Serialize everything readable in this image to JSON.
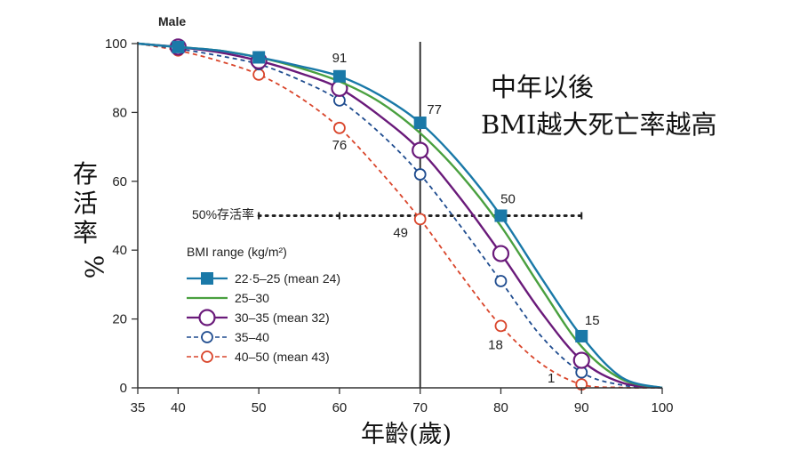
{
  "chart_data": {
    "type": "line",
    "panel_title": "Male",
    "title_lines": [
      "中年以後",
      "BMI越大死亡率越高"
    ],
    "ylabel": "存活率%",
    "xlabel": "年齡(歲)",
    "xlim": [
      35,
      100
    ],
    "ylim": [
      0,
      100
    ],
    "x_ticks": [
      35,
      40,
      50,
      60,
      70,
      80,
      90,
      100
    ],
    "y_ticks": [
      0,
      20,
      40,
      60,
      80,
      100
    ],
    "x_age_marker": 70,
    "reference_line": {
      "label": "50%存活率",
      "y": 50,
      "x_range": [
        50,
        90
      ]
    },
    "legend_title": "BMI range (kg/m²)",
    "legend_position": "lower-left",
    "series": [
      {
        "name": "22·5–25 (mean 24)",
        "color": "#1a79a8",
        "style": "solid",
        "marker": "square",
        "curve": [
          [
            35,
            100
          ],
          [
            40,
            99
          ],
          [
            45,
            98
          ],
          [
            50,
            96
          ],
          [
            55,
            93.5
          ],
          [
            60,
            90.5
          ],
          [
            65,
            85
          ],
          [
            70,
            77
          ],
          [
            75,
            65
          ],
          [
            80,
            50
          ],
          [
            85,
            32
          ],
          [
            90,
            15
          ],
          [
            95,
            3
          ],
          [
            100,
            0
          ]
        ],
        "markers": [
          [
            40,
            99
          ],
          [
            50,
            96
          ],
          [
            60,
            90.5
          ],
          [
            70,
            77
          ],
          [
            80,
            50
          ],
          [
            90,
            15
          ]
        ]
      },
      {
        "name": "25–30",
        "color": "#4aa03f",
        "style": "solid",
        "marker": "none",
        "curve": [
          [
            35,
            100
          ],
          [
            40,
            99
          ],
          [
            45,
            98
          ],
          [
            50,
            96
          ],
          [
            55,
            93
          ],
          [
            60,
            89
          ],
          [
            65,
            83
          ],
          [
            70,
            74
          ],
          [
            75,
            62
          ],
          [
            80,
            47
          ],
          [
            85,
            29
          ],
          [
            90,
            12
          ],
          [
            95,
            2.5
          ],
          [
            100,
            0
          ]
        ],
        "markers": []
      },
      {
        "name": "30–35 (mean 32)",
        "color": "#6a1a7a",
        "style": "solid",
        "marker": "circle-large",
        "curve": [
          [
            35,
            100
          ],
          [
            40,
            99
          ],
          [
            45,
            97.5
          ],
          [
            50,
            95
          ],
          [
            55,
            91.5
          ],
          [
            60,
            87
          ],
          [
            65,
            79
          ],
          [
            70,
            69
          ],
          [
            75,
            55
          ],
          [
            80,
            39
          ],
          [
            85,
            22
          ],
          [
            90,
            8
          ],
          [
            95,
            1.5
          ],
          [
            100,
            0
          ]
        ],
        "markers": [
          [
            40,
            99
          ],
          [
            50,
            95
          ],
          [
            60,
            87
          ],
          [
            70,
            69
          ],
          [
            80,
            39
          ],
          [
            90,
            8
          ]
        ]
      },
      {
        "name": "35–40",
        "color": "#1f4c8f",
        "style": "dashed",
        "marker": "circle",
        "curve": [
          [
            35,
            100
          ],
          [
            40,
            98.5
          ],
          [
            45,
            96.5
          ],
          [
            50,
            94
          ],
          [
            55,
            89.5
          ],
          [
            60,
            83.5
          ],
          [
            65,
            74
          ],
          [
            70,
            62
          ],
          [
            75,
            47
          ],
          [
            80,
            31
          ],
          [
            85,
            15
          ],
          [
            90,
            4.5
          ],
          [
            95,
            0.8
          ],
          [
            100,
            0
          ]
        ],
        "markers": [
          [
            40,
            98.5
          ],
          [
            50,
            94
          ],
          [
            60,
            83.5
          ],
          [
            70,
            62
          ],
          [
            80,
            31
          ],
          [
            90,
            4.5
          ]
        ]
      },
      {
        "name": "40–50 (mean 43)",
        "color": "#d9452b",
        "style": "dashed",
        "marker": "circle",
        "curve": [
          [
            35,
            100
          ],
          [
            40,
            98
          ],
          [
            45,
            95
          ],
          [
            50,
            91
          ],
          [
            55,
            84.5
          ],
          [
            60,
            75.5
          ],
          [
            65,
            63
          ],
          [
            70,
            49
          ],
          [
            75,
            33
          ],
          [
            80,
            18
          ],
          [
            85,
            7
          ],
          [
            90,
            1
          ],
          [
            95,
            0.1
          ],
          [
            100,
            0
          ]
        ],
        "markers": [
          [
            40,
            98
          ],
          [
            50,
            91
          ],
          [
            60,
            75.5
          ],
          [
            70,
            49
          ],
          [
            80,
            18
          ],
          [
            90,
            1
          ]
        ]
      }
    ],
    "data_labels": [
      {
        "text": "91",
        "x": 60,
        "y": 90.5,
        "series": "22·5–25 (mean 24)"
      },
      {
        "text": "77",
        "x": 70,
        "y": 77,
        "series": "22·5–25 (mean 24)"
      },
      {
        "text": "50",
        "x": 80,
        "y": 50,
        "series": "22·5–25 (mean 24)"
      },
      {
        "text": "15",
        "x": 90,
        "y": 15,
        "series": "22·5–25 (mean 24)"
      },
      {
        "text": "76",
        "x": 60,
        "y": 75.5,
        "series": "40–50 (mean 43)"
      },
      {
        "text": "49",
        "x": 70,
        "y": 49,
        "series": "40–50 (mean 43)"
      },
      {
        "text": "18",
        "x": 80,
        "y": 18,
        "series": "40–50 (mean 43)"
      },
      {
        "text": "1",
        "x": 90,
        "y": 1,
        "series": "40–50 (mean 43)"
      }
    ]
  }
}
